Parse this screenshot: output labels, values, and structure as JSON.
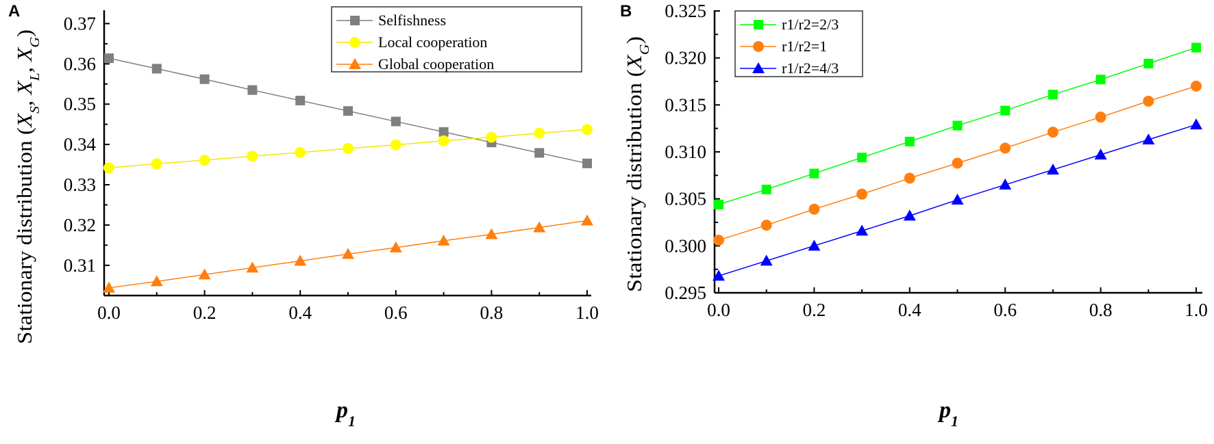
{
  "chart_data": [
    {
      "type": "line",
      "panel_label": "A",
      "xlabel": "p",
      "xlabel_sub": "1",
      "ylabel": "Stationary distribution (",
      "ylabel_parts": [
        "X",
        "S",
        ", X",
        "L",
        ", X",
        "G",
        ")"
      ],
      "xlim": [
        0,
        1
      ],
      "ylim": [
        0.3025,
        0.375
      ],
      "xticks": [
        "0.0",
        "0.2",
        "0.4",
        "0.6",
        "0.8",
        "1.0"
      ],
      "yticks": [
        "0.31",
        "0.32",
        "0.33",
        "0.34",
        "0.35",
        "0.36",
        "0.37"
      ],
      "legend_position": "top-right",
      "x": [
        0,
        0.1,
        0.2,
        0.3,
        0.4,
        0.5,
        0.6,
        0.7,
        0.8,
        0.9,
        1.0
      ],
      "series": [
        {
          "name": "Selfishness",
          "color": "#7f7f7f",
          "marker": "square",
          "values": [
            0.3614,
            0.3588,
            0.3562,
            0.3535,
            0.3509,
            0.3483,
            0.3457,
            0.3431,
            0.3405,
            0.3379,
            0.3353
          ]
        },
        {
          "name": "Local cooperation",
          "color": "#ffff00",
          "marker": "circle",
          "values": [
            0.3342,
            0.3352,
            0.3361,
            0.3371,
            0.338,
            0.339,
            0.3399,
            0.3409,
            0.3418,
            0.3428,
            0.3437
          ]
        },
        {
          "name": "Global cooperation",
          "color": "#ff7f0e",
          "marker": "triangle",
          "values": [
            0.3044,
            0.306,
            0.3077,
            0.3094,
            0.3111,
            0.3128,
            0.3144,
            0.3161,
            0.3177,
            0.3194,
            0.3211
          ]
        }
      ]
    },
    {
      "type": "line",
      "panel_label": "B",
      "xlabel": "p",
      "xlabel_sub": "1",
      "ylabel": "Stationary distribution (",
      "ylabel_parts": [
        "X",
        "G",
        ")"
      ],
      "xlim": [
        0,
        1
      ],
      "ylim": [
        0.295,
        0.3258
      ],
      "xticks": [
        "0.0",
        "0.2",
        "0.4",
        "0.6",
        "0.8",
        "1.0"
      ],
      "yticks": [
        "0.295",
        "0.300",
        "0.305",
        "0.310",
        "0.315",
        "0.320",
        "0.325"
      ],
      "legend_position": "top-left",
      "x": [
        0,
        0.1,
        0.2,
        0.3,
        0.4,
        0.5,
        0.6,
        0.7,
        0.8,
        0.9,
        1.0
      ],
      "series": [
        {
          "name": "r1/r2=2/3",
          "color": "#00ff00",
          "marker": "square",
          "values": [
            0.3044,
            0.306,
            0.3077,
            0.3094,
            0.3111,
            0.3128,
            0.3144,
            0.3161,
            0.3177,
            0.3194,
            0.3211
          ]
        },
        {
          "name": "r1/r2=1",
          "color": "#ff7f0e",
          "marker": "circle",
          "values": [
            0.3006,
            0.3022,
            0.3039,
            0.3055,
            0.3072,
            0.3088,
            0.3104,
            0.3121,
            0.3137,
            0.3154,
            0.317
          ]
        },
        {
          "name": "r1/r2=4/3",
          "color": "#0000ff",
          "marker": "triangle",
          "values": [
            0.2968,
            0.2984,
            0.3,
            0.3016,
            0.3032,
            0.3049,
            0.3065,
            0.3081,
            0.3097,
            0.3113,
            0.3129
          ]
        }
      ]
    }
  ]
}
